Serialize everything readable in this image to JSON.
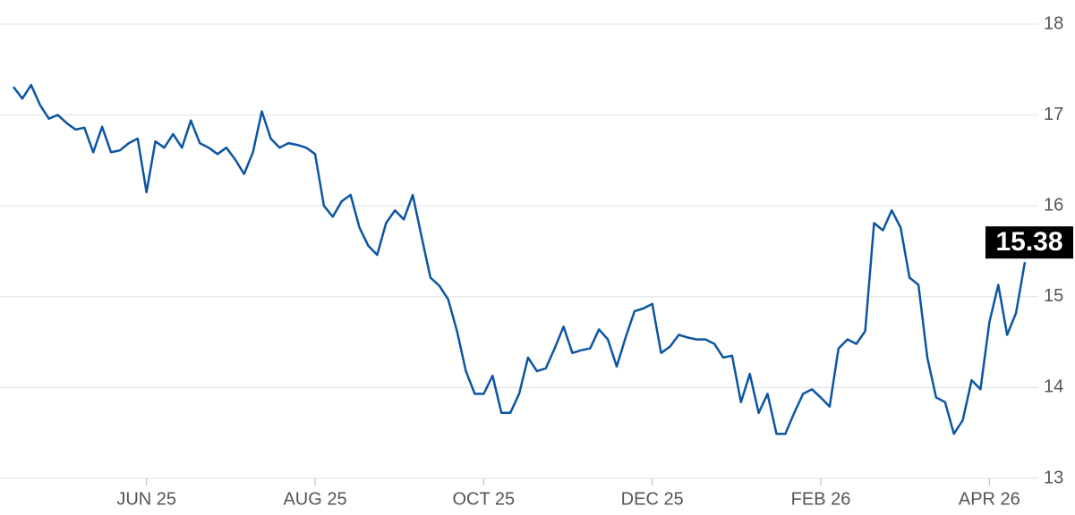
{
  "chart_data": {
    "type": "line",
    "categories": [
      null,
      null,
      null,
      null,
      null,
      null,
      null,
      null,
      null,
      null,
      null,
      null,
      null,
      null,
      null,
      "JUN 25",
      null,
      null,
      null,
      null,
      null,
      null,
      null,
      null,
      null,
      null,
      null,
      null,
      null,
      null,
      null,
      null,
      null,
      null,
      "AUG 25",
      null,
      null,
      null,
      null,
      null,
      null,
      null,
      null,
      null,
      null,
      null,
      null,
      null,
      null,
      null,
      null,
      null,
      null,
      "OCT 25",
      null,
      null,
      null,
      null,
      null,
      null,
      null,
      null,
      null,
      null,
      null,
      null,
      null,
      null,
      null,
      null,
      null,
      null,
      "DEC 25",
      null,
      null,
      null,
      null,
      null,
      null,
      null,
      null,
      null,
      null,
      null,
      null,
      null,
      null,
      null,
      null,
      null,
      null,
      "FEB 26",
      null,
      null,
      null,
      null,
      null,
      null,
      null,
      null,
      null,
      null,
      null,
      null,
      null,
      null,
      null,
      null,
      null,
      null,
      "APR 26",
      null,
      null,
      null,
      null
    ],
    "values": [
      17.31,
      17.18,
      17.33,
      17.11,
      16.96,
      17.0,
      16.91,
      16.84,
      16.86,
      16.59,
      16.87,
      16.59,
      16.61,
      16.69,
      16.74,
      16.15,
      16.71,
      16.64,
      16.79,
      16.64,
      16.94,
      16.69,
      16.64,
      16.57,
      16.64,
      16.51,
      16.35,
      16.59,
      17.04,
      16.74,
      16.64,
      16.69,
      16.67,
      16.64,
      16.57,
      16.0,
      15.88,
      16.05,
      16.12,
      15.76,
      15.56,
      15.46,
      15.81,
      15.95,
      15.85,
      16.12,
      15.66,
      15.21,
      15.12,
      14.97,
      14.62,
      14.18,
      13.93,
      13.93,
      14.13,
      13.72,
      13.72,
      13.93,
      14.33,
      14.18,
      14.21,
      14.43,
      14.67,
      14.38,
      14.41,
      14.43,
      14.64,
      14.53,
      14.23,
      14.55,
      14.84,
      14.87,
      14.92,
      14.38,
      14.45,
      14.58,
      14.55,
      14.53,
      14.53,
      14.48,
      14.33,
      14.35,
      13.84,
      14.15,
      13.72,
      13.93,
      13.49,
      13.49,
      13.72,
      13.93,
      13.98,
      13.89,
      13.79,
      14.43,
      14.53,
      14.48,
      14.62,
      15.81,
      15.73,
      15.95,
      15.76,
      15.21,
      15.13,
      14.33,
      13.89,
      13.84,
      13.49,
      13.64,
      14.08,
      13.98,
      14.72,
      15.13,
      14.58,
      14.82,
      15.38
    ],
    "color": "#0b55a3",
    "ylim": [
      13,
      18
    ],
    "yticks": [
      13,
      14,
      15,
      16,
      17,
      18
    ],
    "grid": true
  }
}
